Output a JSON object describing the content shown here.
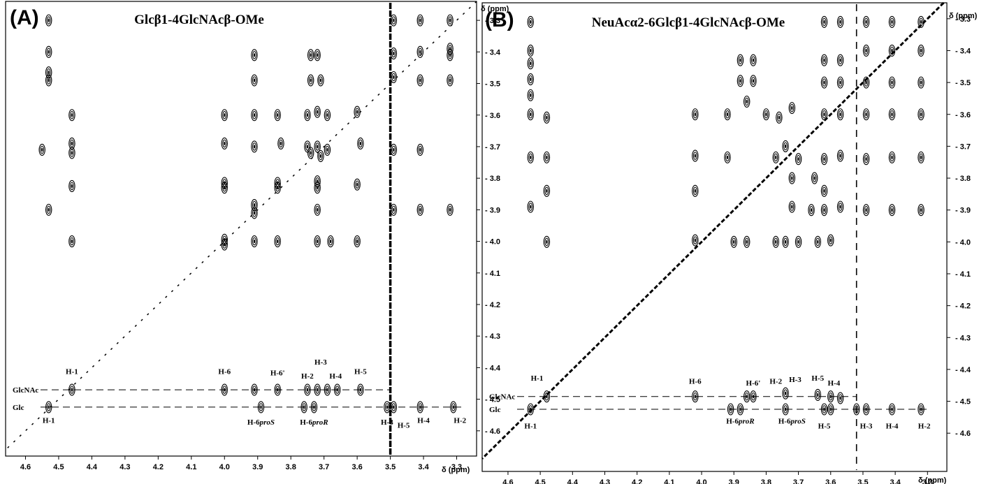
{
  "chart_data": [
    {
      "panel": "(A)",
      "type": "scatter",
      "subtype": "2D NMR contour spectrum",
      "title": "Glcβ1-4GlcNAcβ-OMe",
      "xlabel": "δ (ppm)",
      "ylabel": "δ (ppm)",
      "xlim": [
        4.66,
        3.24
      ],
      "ylim": [
        3.24,
        4.68
      ],
      "x_reversed": true,
      "y_down_increasing": true,
      "x_ticks": [
        4.6,
        4.5,
        4.4,
        4.3,
        4.2,
        4.1,
        4.0,
        3.9,
        3.8,
        3.7,
        3.6,
        3.5,
        3.4,
        3.3
      ],
      "y_ticks": [
        3.3,
        3.4,
        3.5,
        3.6,
        3.7,
        3.8,
        3.9,
        4.0,
        4.1,
        4.2,
        4.3,
        4.4,
        4.5,
        4.6
      ],
      "x_tick_labels": [
        "4.6",
        "4.5",
        "4.4",
        "4.3",
        "4.2",
        "4.1",
        "4.0",
        "3.9",
        "3.8",
        "3.7",
        "3.6",
        "3.5",
        "3.4",
        "3.3"
      ],
      "y_tick_labels": [
        "3.3",
        "3.4",
        "3.5",
        "3.6",
        "3.7",
        "3.8",
        "3.9",
        "4.0",
        "4.1",
        "4.2",
        "4.3",
        "4.4",
        "4.5",
        "4.6"
      ],
      "diagonal": true,
      "solvent_line_x": 3.5,
      "rows": [
        {
          "name": "GlcNAc",
          "y": 4.47,
          "from": 4.46,
          "to": 3.5
        },
        {
          "name": "Glc",
          "y": 4.525,
          "from": 4.53,
          "to": 3.28
        }
      ],
      "annotations": [
        {
          "text": "H-1",
          "x": 4.46,
          "y": 4.42
        },
        {
          "text": "H-6",
          "x": 4.0,
          "y": 4.42
        },
        {
          "text": "H-6'",
          "x": 3.84,
          "y": 4.425
        },
        {
          "text": "H-2",
          "x": 3.75,
          "y": 4.435
        },
        {
          "text": "H-3",
          "x": 3.71,
          "y": 4.39
        },
        {
          "text": "H-4",
          "x": 3.665,
          "y": 4.435
        },
        {
          "text": "H-5",
          "x": 3.59,
          "y": 4.42
        },
        {
          "text": "H-1",
          "x": 4.53,
          "y": 4.575
        },
        {
          "text": "H-6proS",
          "x": 3.89,
          "y": 4.58
        },
        {
          "text": "H-6proR",
          "x": 3.73,
          "y": 4.58
        },
        {
          "text": "H-3",
          "x": 3.51,
          "y": 4.58
        },
        {
          "text": "H-5",
          "x": 3.46,
          "y": 4.59
        },
        {
          "text": "H-4",
          "x": 3.4,
          "y": 4.575
        },
        {
          "text": "H-2",
          "x": 3.29,
          "y": 4.575
        }
      ],
      "peaks": [
        [
          4.53,
          3.3
        ],
        [
          4.53,
          3.4
        ],
        [
          4.53,
          3.465
        ],
        [
          4.53,
          3.49
        ],
        [
          4.46,
          3.6
        ],
        [
          4.46,
          3.69
        ],
        [
          4.46,
          3.72
        ],
        [
          4.46,
          3.825
        ],
        [
          4.53,
          3.9
        ],
        [
          4.46,
          4.0
        ],
        [
          4.55,
          3.71
        ],
        [
          3.91,
          3.41
        ],
        [
          3.91,
          3.49
        ],
        [
          3.74,
          3.41
        ],
        [
          3.72,
          3.41
        ],
        [
          3.74,
          3.49
        ],
        [
          3.71,
          3.49
        ],
        [
          4.0,
          3.6
        ],
        [
          4.0,
          3.69
        ],
        [
          4.0,
          3.815
        ],
        [
          4.0,
          3.83
        ],
        [
          4.0,
          3.995
        ],
        [
          4.0,
          4.01
        ],
        [
          3.91,
          3.6
        ],
        [
          3.91,
          3.7
        ],
        [
          3.91,
          3.885
        ],
        [
          3.91,
          3.91
        ],
        [
          3.91,
          4.0
        ],
        [
          3.84,
          3.6
        ],
        [
          3.83,
          3.69
        ],
        [
          3.84,
          3.815
        ],
        [
          3.84,
          3.83
        ],
        [
          3.84,
          4.0
        ],
        [
          3.75,
          3.6
        ],
        [
          3.72,
          3.59
        ],
        [
          3.69,
          3.6
        ],
        [
          3.75,
          3.7
        ],
        [
          3.72,
          3.7
        ],
        [
          3.69,
          3.71
        ],
        [
          3.74,
          3.72
        ],
        [
          3.71,
          3.73
        ],
        [
          3.72,
          3.81
        ],
        [
          3.72,
          3.83
        ],
        [
          3.72,
          3.9
        ],
        [
          3.72,
          4.0
        ],
        [
          3.68,
          4.0
        ],
        [
          3.6,
          3.59
        ],
        [
          3.59,
          3.69
        ],
        [
          3.6,
          3.82
        ],
        [
          3.6,
          4.0
        ],
        [
          3.49,
          3.3
        ],
        [
          3.49,
          3.405
        ],
        [
          3.49,
          3.48
        ],
        [
          3.49,
          3.71
        ],
        [
          3.49,
          3.9
        ],
        [
          3.41,
          3.3
        ],
        [
          3.41,
          3.4
        ],
        [
          3.41,
          3.49
        ],
        [
          3.41,
          3.71
        ],
        [
          3.41,
          3.9
        ],
        [
          3.32,
          3.3
        ],
        [
          3.32,
          3.39
        ],
        [
          3.32,
          3.41
        ],
        [
          3.32,
          3.49
        ],
        [
          3.32,
          3.9
        ],
        [
          4.46,
          4.47
        ],
        [
          4.0,
          4.47
        ],
        [
          3.91,
          4.47
        ],
        [
          3.84,
          4.47
        ],
        [
          3.75,
          4.47
        ],
        [
          3.72,
          4.47
        ],
        [
          3.69,
          4.47
        ],
        [
          3.66,
          4.47
        ],
        [
          3.59,
          4.47
        ],
        [
          4.53,
          4.525
        ],
        [
          3.89,
          4.525
        ],
        [
          3.76,
          4.525
        ],
        [
          3.73,
          4.525
        ],
        [
          3.51,
          4.525
        ],
        [
          3.49,
          4.525
        ],
        [
          3.41,
          4.525
        ],
        [
          3.31,
          4.525
        ]
      ]
    },
    {
      "panel": "(B)",
      "type": "scatter",
      "subtype": "2D NMR contour spectrum",
      "title": "NeuAcα2-6Glcβ1-4GlcNAcβ-OMe",
      "xlabel": "δ (ppm)",
      "ylabel": "δ (ppm)",
      "xlim": [
        4.68,
        3.24
      ],
      "ylim": [
        3.25,
        4.72
      ],
      "x_reversed": true,
      "y_down_increasing": true,
      "x_ticks": [
        4.6,
        4.5,
        4.4,
        4.3,
        4.2,
        4.1,
        4.0,
        3.9,
        3.8,
        3.7,
        3.6,
        3.5,
        3.4,
        3.3
      ],
      "y_ticks": [
        3.3,
        3.4,
        3.5,
        3.6,
        3.7,
        3.8,
        3.9,
        4.0,
        4.1,
        4.2,
        4.3,
        4.4,
        4.5,
        4.6
      ],
      "x_tick_labels": [
        "4.6",
        "4.5",
        "4.4",
        "4.3",
        "4.2",
        "4.1",
        "4.0",
        "3.9",
        "3.8",
        "3.7",
        "3.6",
        "3.5",
        "3.4",
        "3.3"
      ],
      "y_tick_labels": [
        "3.3",
        "3.4",
        "3.5",
        "3.6",
        "3.7",
        "3.8",
        "3.9",
        "4.0",
        "4.1",
        "4.2",
        "4.3",
        "4.4",
        "4.5",
        "4.6"
      ],
      "diagonal": true,
      "solvent_line_x": 3.52,
      "rows": [
        {
          "name": "GlcNAc",
          "y": 4.485,
          "from": 4.48,
          "to": 3.52
        },
        {
          "name": "Glc",
          "y": 4.525,
          "from": 4.53,
          "to": 3.29
        }
      ],
      "annotations": [
        {
          "text": "H-1",
          "x": 4.51,
          "y": 4.435
        },
        {
          "text": "H-6",
          "x": 4.02,
          "y": 4.445
        },
        {
          "text": "H-6'",
          "x": 3.84,
          "y": 4.45
        },
        {
          "text": "H-2",
          "x": 3.77,
          "y": 4.445
        },
        {
          "text": "H-3",
          "x": 3.71,
          "y": 4.44
        },
        {
          "text": "H-5",
          "x": 3.64,
          "y": 4.435
        },
        {
          "text": "H-4",
          "x": 3.59,
          "y": 4.45
        },
        {
          "text": "H-1",
          "x": 4.53,
          "y": 4.585
        },
        {
          "text": "H-6proR",
          "x": 3.88,
          "y": 4.57
        },
        {
          "text": "H-6proS",
          "x": 3.72,
          "y": 4.57
        },
        {
          "text": "H-5",
          "x": 3.62,
          "y": 4.585
        },
        {
          "text": "H-3",
          "x": 3.49,
          "y": 4.585
        },
        {
          "text": "H-4",
          "x": 3.41,
          "y": 4.585
        },
        {
          "text": "H-2",
          "x": 3.31,
          "y": 4.585
        }
      ],
      "peaks": [
        [
          4.53,
          3.31
        ],
        [
          4.53,
          3.4
        ],
        [
          4.53,
          3.44
        ],
        [
          4.53,
          3.49
        ],
        [
          4.53,
          3.54
        ],
        [
          4.53,
          3.6
        ],
        [
          4.53,
          3.735
        ],
        [
          4.53,
          3.89
        ],
        [
          4.48,
          3.61
        ],
        [
          4.48,
          3.735
        ],
        [
          4.48,
          3.84
        ],
        [
          4.48,
          4.0
        ],
        [
          4.02,
          3.6
        ],
        [
          4.02,
          3.73
        ],
        [
          4.02,
          3.84
        ],
        [
          4.02,
          3.995
        ],
        [
          3.92,
          3.6
        ],
        [
          3.92,
          3.735
        ],
        [
          3.88,
          3.43
        ],
        [
          3.88,
          3.495
        ],
        [
          3.84,
          3.43
        ],
        [
          3.84,
          3.495
        ],
        [
          3.9,
          4.0
        ],
        [
          3.86,
          4.0
        ],
        [
          3.77,
          4.0
        ],
        [
          3.74,
          4.0
        ],
        [
          3.7,
          4.0
        ],
        [
          3.64,
          4.0
        ],
        [
          3.6,
          3.995
        ],
        [
          3.86,
          3.56
        ],
        [
          3.8,
          3.6
        ],
        [
          3.76,
          3.61
        ],
        [
          3.72,
          3.58
        ],
        [
          3.77,
          3.735
        ],
        [
          3.74,
          3.7
        ],
        [
          3.7,
          3.74
        ],
        [
          3.65,
          3.8
        ],
        [
          3.72,
          3.89
        ],
        [
          3.66,
          3.9
        ],
        [
          3.72,
          3.8
        ],
        [
          3.62,
          3.31
        ],
        [
          3.62,
          3.43
        ],
        [
          3.62,
          3.5
        ],
        [
          3.62,
          3.6
        ],
        [
          3.62,
          3.74
        ],
        [
          3.62,
          3.84
        ],
        [
          3.62,
          3.9
        ],
        [
          3.57,
          3.31
        ],
        [
          3.57,
          3.43
        ],
        [
          3.57,
          3.5
        ],
        [
          3.57,
          3.6
        ],
        [
          3.57,
          3.73
        ],
        [
          3.57,
          3.89
        ],
        [
          3.49,
          3.31
        ],
        [
          3.49,
          3.4
        ],
        [
          3.49,
          3.5
        ],
        [
          3.49,
          3.6
        ],
        [
          3.49,
          3.74
        ],
        [
          3.49,
          3.9
        ],
        [
          3.41,
          3.31
        ],
        [
          3.41,
          3.4
        ],
        [
          3.41,
          3.5
        ],
        [
          3.41,
          3.6
        ],
        [
          3.41,
          3.735
        ],
        [
          3.41,
          3.9
        ],
        [
          3.32,
          3.31
        ],
        [
          3.32,
          3.4
        ],
        [
          3.32,
          3.5
        ],
        [
          3.32,
          3.6
        ],
        [
          3.32,
          3.735
        ],
        [
          3.32,
          3.9
        ],
        [
          4.48,
          4.485
        ],
        [
          4.02,
          4.485
        ],
        [
          3.86,
          4.485
        ],
        [
          3.84,
          4.485
        ],
        [
          3.74,
          4.475
        ],
        [
          3.64,
          4.48
        ],
        [
          3.6,
          4.485
        ],
        [
          3.57,
          4.49
        ],
        [
          4.53,
          4.525
        ],
        [
          3.91,
          4.525
        ],
        [
          3.88,
          4.525
        ],
        [
          3.74,
          4.525
        ],
        [
          3.62,
          4.525
        ],
        [
          3.6,
          4.525
        ],
        [
          3.52,
          4.525
        ],
        [
          3.49,
          4.525
        ],
        [
          3.41,
          4.525
        ],
        [
          3.32,
          4.525
        ]
      ]
    }
  ]
}
